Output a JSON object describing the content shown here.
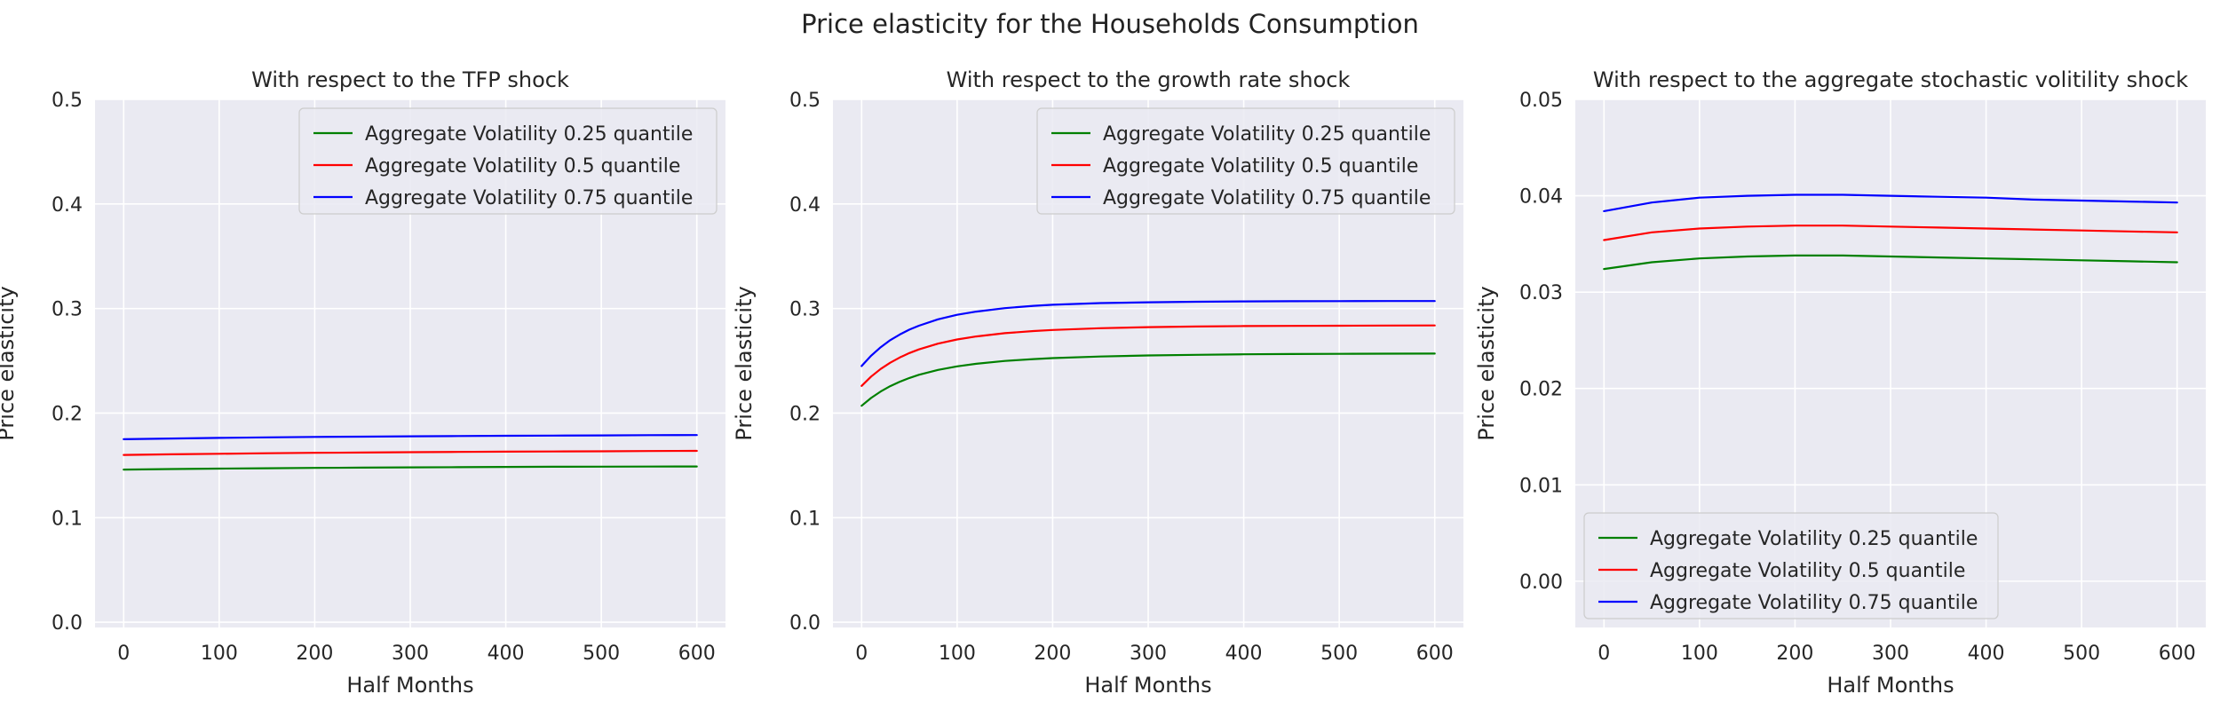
{
  "figure": {
    "title": "Price elasticity for the Households Consumption",
    "background": "#ffffff",
    "axes_facecolor": "#eaeaf2",
    "grid_color": "#ffffff"
  },
  "chart_data": [
    {
      "type": "line",
      "title": "With respect to the TFP shock",
      "xlabel": "Half Months",
      "ylabel": "Price elasticity",
      "xlim": [
        -30,
        630
      ],
      "ylim": [
        -0.005,
        0.5
      ],
      "xticks": [
        0,
        100,
        200,
        300,
        400,
        500,
        600
      ],
      "xtick_labels": [
        "0",
        "100",
        "200",
        "300",
        "400",
        "500",
        "600"
      ],
      "yticks": [
        0.0,
        0.1,
        0.2,
        0.3,
        0.4,
        0.5
      ],
      "ytick_labels": [
        "0.0",
        "0.1",
        "0.2",
        "0.3",
        "0.4",
        "0.5"
      ],
      "grid": true,
      "legend_position": "upper right",
      "x": [
        0,
        50,
        100,
        150,
        200,
        250,
        300,
        350,
        400,
        450,
        500,
        550,
        600
      ],
      "series": [
        {
          "name": "Aggregate Volatility 0.25 quantile",
          "color": "#008000",
          "values": [
            0.146,
            0.1465,
            0.1469,
            0.1473,
            0.1476,
            0.1479,
            0.1481,
            0.1483,
            0.1485,
            0.1487,
            0.1488,
            0.1489,
            0.149
          ]
        },
        {
          "name": "Aggregate Volatility 0.5 quantile",
          "color": "#ff0000",
          "values": [
            0.16,
            0.1606,
            0.1611,
            0.1616,
            0.162,
            0.1623,
            0.1626,
            0.1629,
            0.1631,
            0.1633,
            0.1635,
            0.1637,
            0.1639
          ]
        },
        {
          "name": "Aggregate Volatility 0.75 quantile",
          "color": "#0000ff",
          "values": [
            0.175,
            0.1757,
            0.1763,
            0.1768,
            0.1772,
            0.1775,
            0.1778,
            0.1781,
            0.1783,
            0.1785,
            0.1787,
            0.1789,
            0.179
          ]
        }
      ]
    },
    {
      "type": "line",
      "title": "With respect to the growth rate shock",
      "xlabel": "Half Months",
      "ylabel": "Price elasticity",
      "xlim": [
        -30,
        630
      ],
      "ylim": [
        -0.005,
        0.5
      ],
      "xticks": [
        0,
        100,
        200,
        300,
        400,
        500,
        600
      ],
      "xtick_labels": [
        "0",
        "100",
        "200",
        "300",
        "400",
        "500",
        "600"
      ],
      "yticks": [
        0.0,
        0.1,
        0.2,
        0.3,
        0.4,
        0.5
      ],
      "ytick_labels": [
        "0.0",
        "0.1",
        "0.2",
        "0.3",
        "0.4",
        "0.5"
      ],
      "grid": true,
      "legend_position": "upper right",
      "x": [
        0,
        10,
        20,
        30,
        40,
        50,
        60,
        80,
        100,
        120,
        150,
        180,
        200,
        250,
        300,
        350,
        400,
        450,
        500,
        550,
        600
      ],
      "series": [
        {
          "name": "Aggregate Volatility 0.25 quantile",
          "color": "#008000",
          "values": [
            0.207,
            0.2145,
            0.2207,
            0.2258,
            0.23,
            0.2336,
            0.2366,
            0.2413,
            0.2447,
            0.2472,
            0.2499,
            0.2517,
            0.2526,
            0.2541,
            0.2551,
            0.2557,
            0.2562,
            0.2565,
            0.2567,
            0.2568,
            0.2569
          ]
        },
        {
          "name": "Aggregate Volatility 0.5 quantile",
          "color": "#ff0000",
          "values": [
            0.226,
            0.2349,
            0.2422,
            0.2482,
            0.2532,
            0.2574,
            0.2609,
            0.2664,
            0.2704,
            0.2733,
            0.2764,
            0.2785,
            0.2795,
            0.2812,
            0.2822,
            0.2828,
            0.2832,
            0.2834,
            0.2836,
            0.2837,
            0.2838
          ]
        },
        {
          "name": "Aggregate Volatility 0.75 quantile",
          "color": "#0000ff",
          "values": [
            0.245,
            0.2549,
            0.263,
            0.2697,
            0.2752,
            0.2798,
            0.2836,
            0.2897,
            0.294,
            0.2971,
            0.3004,
            0.3026,
            0.3036,
            0.3052,
            0.306,
            0.3065,
            0.3068,
            0.307,
            0.3071,
            0.3072,
            0.3072
          ]
        }
      ]
    },
    {
      "type": "line",
      "title": "With respect to the aggregate stochastic volitility shock",
      "xlabel": "Half Months",
      "ylabel": "Price elasticity",
      "xlim": [
        -30,
        630
      ],
      "ylim": [
        -0.0048,
        0.05
      ],
      "xticks": [
        0,
        100,
        200,
        300,
        400,
        500,
        600
      ],
      "xtick_labels": [
        "0",
        "100",
        "200",
        "300",
        "400",
        "500",
        "600"
      ],
      "yticks": [
        0.0,
        0.01,
        0.02,
        0.03,
        0.04,
        0.05
      ],
      "ytick_labels": [
        "0.00",
        "0.01",
        "0.02",
        "0.03",
        "0.04",
        "0.05"
      ],
      "grid": true,
      "legend_position": "lower left",
      "x": [
        0,
        50,
        100,
        150,
        200,
        250,
        300,
        350,
        400,
        450,
        500,
        550,
        600
      ],
      "series": [
        {
          "name": "Aggregate Volatility 0.25 quantile",
          "color": "#008000",
          "values": [
            0.0324,
            0.0331,
            0.0335,
            0.0337,
            0.0338,
            0.0338,
            0.0337,
            0.0336,
            0.0335,
            0.0334,
            0.0333,
            0.0332,
            0.0331
          ]
        },
        {
          "name": "Aggregate Volatility 0.5 quantile",
          "color": "#ff0000",
          "values": [
            0.0354,
            0.0362,
            0.0366,
            0.0368,
            0.0369,
            0.0369,
            0.0368,
            0.0367,
            0.0366,
            0.0365,
            0.0364,
            0.0363,
            0.0362
          ]
        },
        {
          "name": "Aggregate Volatility 0.75 quantile",
          "color": "#0000ff",
          "values": [
            0.0384,
            0.0393,
            0.0398,
            0.04,
            0.0401,
            0.0401,
            0.04,
            0.0399,
            0.0398,
            0.0396,
            0.0395,
            0.0394,
            0.0393
          ]
        }
      ]
    }
  ]
}
